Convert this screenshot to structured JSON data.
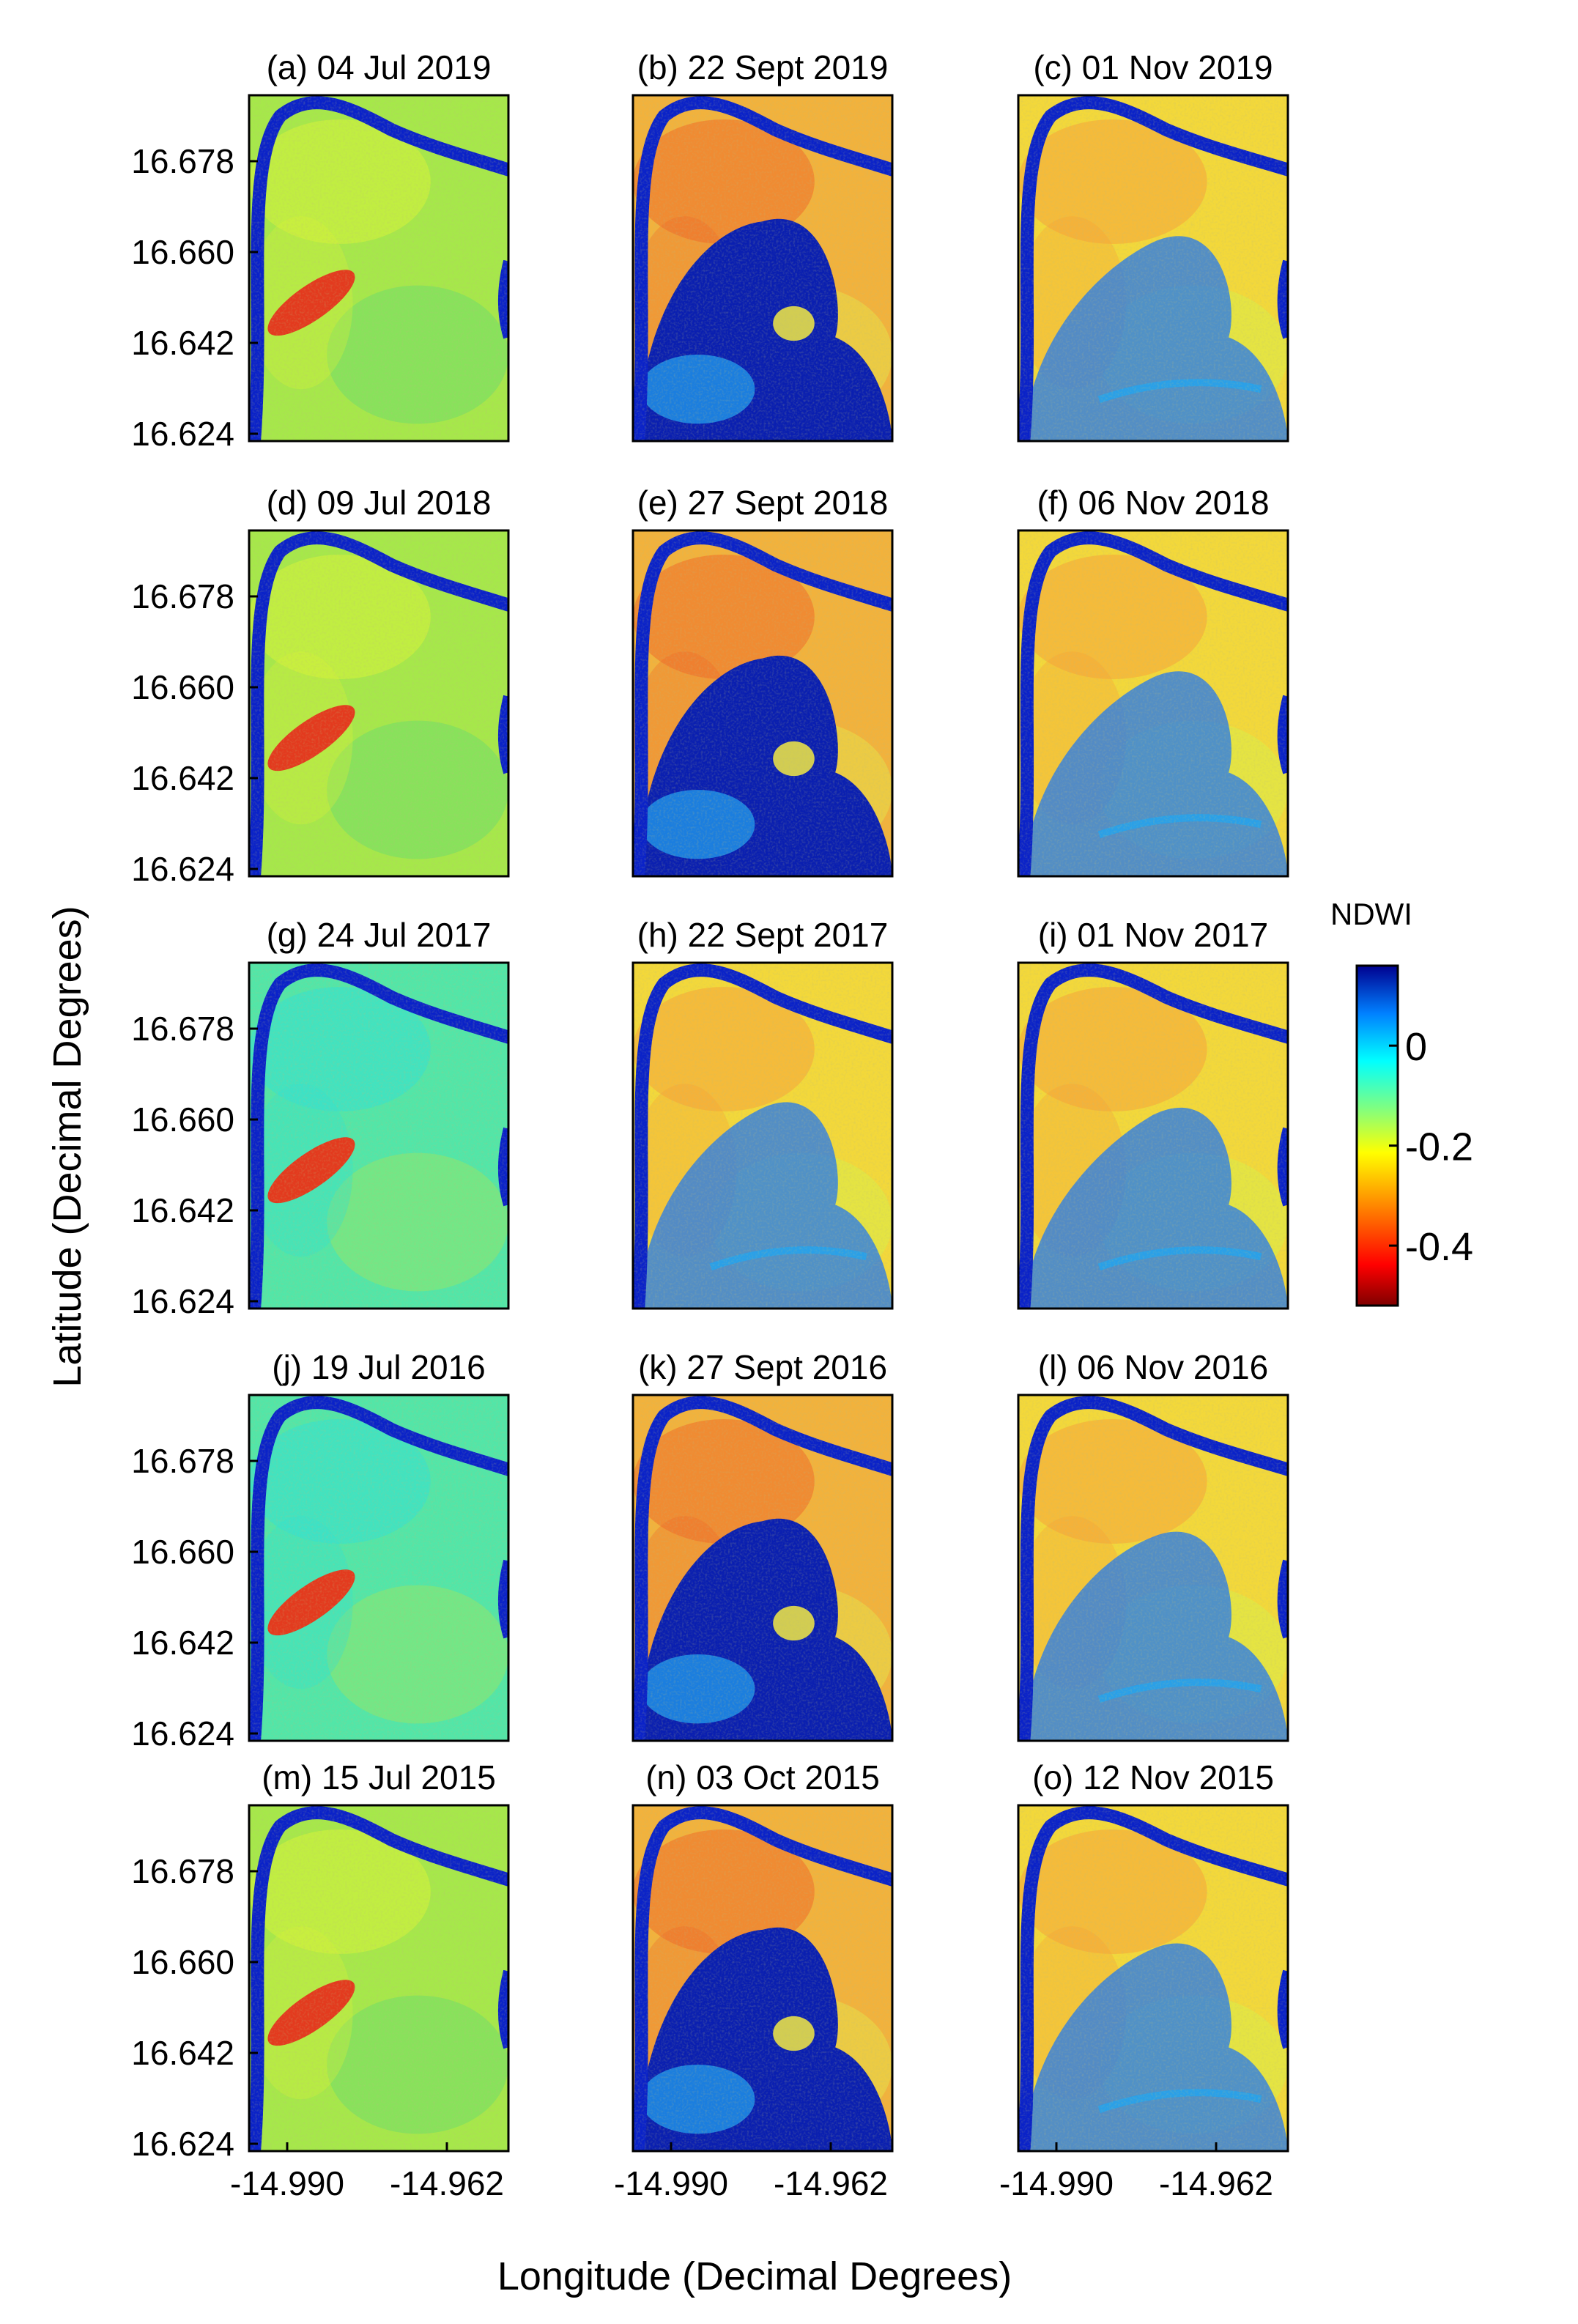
{
  "chart_data": {
    "type": "heatmap",
    "title": "",
    "xlabel": "Longitude (Decimal Degrees)",
    "ylabel": "Latitude (Decimal Degrees)",
    "x_ticks": [
      "-14.990",
      "-14.962"
    ],
    "y_ticks": [
      "16.678",
      "16.660",
      "16.642",
      "16.624"
    ],
    "panels": [
      {
        "label": "(a) 04 Jul 2019",
        "palette": "green",
        "flood": 0.0,
        "ridge": true,
        "river_right": true
      },
      {
        "label": "(b) 22 Sept 2019",
        "palette": "blue",
        "flood": 0.85,
        "ridge": false,
        "river_right": false
      },
      {
        "label": "(c) 01 Nov 2019",
        "palette": "yellow",
        "flood": 0.25,
        "ridge": false,
        "river_right": true
      },
      {
        "label": "(d) 09 Jul 2018",
        "palette": "green",
        "flood": 0.0,
        "ridge": true,
        "river_right": true
      },
      {
        "label": "(e) 27 Sept 2018",
        "palette": "blue",
        "flood": 0.8,
        "ridge": false,
        "river_right": false
      },
      {
        "label": "(f) 06 Nov 2018",
        "palette": "yellow",
        "flood": 0.25,
        "ridge": false,
        "river_right": true
      },
      {
        "label": "(g) 24 Jul 2017",
        "palette": "cyan",
        "flood": 0.0,
        "ridge": true,
        "river_right": true
      },
      {
        "label": "(h) 22 Sept 2017",
        "palette": "yellow",
        "flood": 0.3,
        "ridge": false,
        "river_right": false
      },
      {
        "label": "(i) 01 Nov 2017",
        "palette": "yellow",
        "flood": 0.1,
        "ridge": false,
        "river_right": true
      },
      {
        "label": "(j) 19 Jul 2016",
        "palette": "cyan",
        "flood": 0.0,
        "ridge": true,
        "river_right": true
      },
      {
        "label": "(k) 27 Sept 2016",
        "palette": "blue",
        "flood": 0.85,
        "ridge": false,
        "river_right": false
      },
      {
        "label": "(l) 06 Nov 2016",
        "palette": "yellow",
        "flood": 0.4,
        "ridge": false,
        "river_right": true
      },
      {
        "label": "(m) 15 Jul 2015",
        "palette": "green",
        "flood": 0.0,
        "ridge": true,
        "river_right": true
      },
      {
        "label": "(n) 03 Oct 2015",
        "palette": "blue",
        "flood": 0.9,
        "ridge": false,
        "river_right": false
      },
      {
        "label": "(o) 12 Nov 2015",
        "palette": "yellow",
        "flood": 0.35,
        "ridge": false,
        "river_right": true
      }
    ],
    "colorbar": {
      "title": "NDWI",
      "ticks": [
        "0",
        "-0.2",
        "-0.4"
      ],
      "tick_values": [
        0,
        -0.2,
        -0.4
      ],
      "range": [
        -0.52,
        0.16
      ],
      "colormap": "jet"
    }
  }
}
